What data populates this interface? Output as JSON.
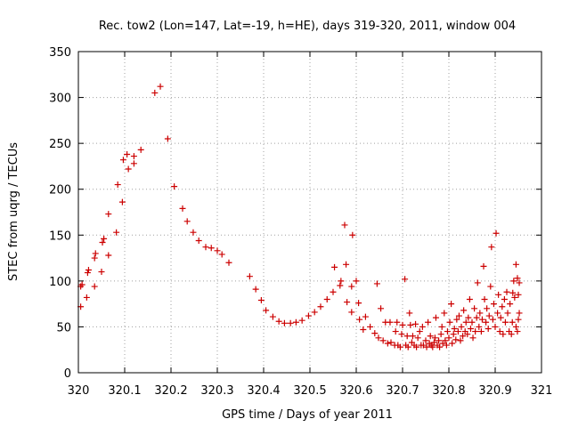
{
  "chart_data": {
    "type": "scatter",
    "title": "Rec. tow2 (Lon=147, Lat=-19, h=HE), days 319-320, 2011, window 004",
    "xlabel": "GPS time / Days of year 2011",
    "ylabel": "STEC from uqrg / TECUs",
    "xlim": [
      320,
      321
    ],
    "ylim": [
      0,
      350
    ],
    "xticks": [
      320,
      320.1,
      320.2,
      320.3,
      320.4,
      320.5,
      320.6,
      320.7,
      320.8,
      320.9,
      321
    ],
    "xtick_labels": [
      "320",
      "320.1",
      "320.2",
      "320.3",
      "320.4",
      "320.5",
      "320.6",
      "320.7",
      "320.8",
      "320.9",
      "321"
    ],
    "yticks": [
      0,
      50,
      100,
      150,
      200,
      250,
      300,
      350
    ],
    "ytick_labels": [
      "0",
      "50",
      "100",
      "150",
      "200",
      "250",
      "300",
      "350"
    ],
    "grid": true,
    "marker": "+",
    "color": "#cc0000",
    "points": [
      [
        320.005,
        72
      ],
      [
        320.005,
        94
      ],
      [
        320.008,
        96
      ],
      [
        320.018,
        82
      ],
      [
        320.02,
        109
      ],
      [
        320.022,
        112
      ],
      [
        320.035,
        94
      ],
      [
        320.035,
        125
      ],
      [
        320.037,
        130
      ],
      [
        320.05,
        110
      ],
      [
        320.052,
        142
      ],
      [
        320.055,
        146
      ],
      [
        320.065,
        128
      ],
      [
        320.065,
        173
      ],
      [
        320.082,
        153
      ],
      [
        320.085,
        205
      ],
      [
        320.095,
        186
      ],
      [
        320.097,
        232
      ],
      [
        320.105,
        238
      ],
      [
        320.108,
        222
      ],
      [
        320.12,
        228
      ],
      [
        320.12,
        236
      ],
      [
        320.135,
        243
      ],
      [
        320.165,
        305
      ],
      [
        320.177,
        312
      ],
      [
        320.193,
        255
      ],
      [
        320.207,
        203
      ],
      [
        320.225,
        179
      ],
      [
        320.235,
        165
      ],
      [
        320.248,
        153
      ],
      [
        320.26,
        144
      ],
      [
        320.275,
        137
      ],
      [
        320.287,
        136
      ],
      [
        320.3,
        133
      ],
      [
        320.31,
        129
      ],
      [
        320.325,
        120
      ],
      [
        320.37,
        105
      ],
      [
        320.383,
        91
      ],
      [
        320.395,
        79
      ],
      [
        320.405,
        68
      ],
      [
        320.42,
        61
      ],
      [
        320.433,
        56
      ],
      [
        320.445,
        54
      ],
      [
        320.458,
        54
      ],
      [
        320.47,
        55
      ],
      [
        320.483,
        57
      ],
      [
        320.497,
        62
      ],
      [
        320.51,
        66
      ],
      [
        320.523,
        72
      ],
      [
        320.537,
        80
      ],
      [
        320.55,
        88
      ],
      [
        320.553,
        115
      ],
      [
        320.565,
        95
      ],
      [
        320.567,
        100
      ],
      [
        320.575,
        161
      ],
      [
        320.578,
        118
      ],
      [
        320.58,
        77
      ],
      [
        320.59,
        66
      ],
      [
        320.592,
        150
      ],
      [
        320.59,
        94
      ],
      [
        320.6,
        100
      ],
      [
        320.605,
        76
      ],
      [
        320.607,
        58
      ],
      [
        320.615,
        47
      ],
      [
        320.62,
        61
      ],
      [
        320.63,
        50
      ],
      [
        320.64,
        43
      ],
      [
        320.645,
        97
      ],
      [
        320.648,
        38
      ],
      [
        320.653,
        70
      ],
      [
        320.658,
        35
      ],
      [
        320.663,
        55
      ],
      [
        320.668,
        32
      ],
      [
        320.673,
        55
      ],
      [
        320.675,
        33
      ],
      [
        320.683,
        30
      ],
      [
        320.685,
        45
      ],
      [
        320.688,
        55
      ],
      [
        320.69,
        30
      ],
      [
        320.695,
        28
      ],
      [
        320.698,
        42
      ],
      [
        320.7,
        52
      ],
      [
        320.705,
        102
      ],
      [
        320.707,
        30
      ],
      [
        320.71,
        40
      ],
      [
        320.712,
        28
      ],
      [
        320.715,
        65
      ],
      [
        320.717,
        52
      ],
      [
        320.72,
        33
      ],
      [
        320.722,
        40
      ],
      [
        320.725,
        30
      ],
      [
        320.728,
        53
      ],
      [
        320.73,
        28
      ],
      [
        320.733,
        38
      ],
      [
        320.737,
        45
      ],
      [
        320.74,
        30
      ],
      [
        320.743,
        50
      ],
      [
        320.745,
        30
      ],
      [
        320.75,
        35
      ],
      [
        320.752,
        28
      ],
      [
        320.755,
        55
      ],
      [
        320.758,
        32
      ],
      [
        320.76,
        40
      ],
      [
        320.762,
        30
      ],
      [
        320.765,
        28
      ],
      [
        320.768,
        33
      ],
      [
        320.77,
        38
      ],
      [
        320.772,
        60
      ],
      [
        320.775,
        30
      ],
      [
        320.778,
        35
      ],
      [
        320.78,
        28
      ],
      [
        320.783,
        42
      ],
      [
        320.785,
        50
      ],
      [
        320.787,
        32
      ],
      [
        320.79,
        65
      ],
      [
        320.792,
        35
      ],
      [
        320.795,
        30
      ],
      [
        320.797,
        45
      ],
      [
        320.8,
        38
      ],
      [
        320.802,
        55
      ],
      [
        320.805,
        75
      ],
      [
        320.807,
        32
      ],
      [
        320.81,
        42
      ],
      [
        320.812,
        48
      ],
      [
        320.815,
        36
      ],
      [
        320.817,
        58
      ],
      [
        320.82,
        45
      ],
      [
        320.822,
        62
      ],
      [
        320.825,
        35
      ],
      [
        320.827,
        50
      ],
      [
        320.83,
        40
      ],
      [
        320.832,
        68
      ],
      [
        320.835,
        45
      ],
      [
        320.837,
        55
      ],
      [
        320.84,
        42
      ],
      [
        320.842,
        60
      ],
      [
        320.845,
        80
      ],
      [
        320.847,
        48
      ],
      [
        320.85,
        55
      ],
      [
        320.852,
        38
      ],
      [
        320.855,
        70
      ],
      [
        320.857,
        45
      ],
      [
        320.86,
        60
      ],
      [
        320.862,
        98
      ],
      [
        320.865,
        50
      ],
      [
        320.867,
        65
      ],
      [
        320.87,
        45
      ],
      [
        320.872,
        58
      ],
      [
        320.875,
        116
      ],
      [
        320.877,
        80
      ],
      [
        320.88,
        55
      ],
      [
        320.882,
        70
      ],
      [
        320.885,
        48
      ],
      [
        320.887,
        62
      ],
      [
        320.89,
        94
      ],
      [
        320.892,
        137
      ],
      [
        320.895,
        58
      ],
      [
        320.897,
        75
      ],
      [
        320.9,
        50
      ],
      [
        320.902,
        152
      ],
      [
        320.905,
        65
      ],
      [
        320.907,
        85
      ],
      [
        320.91,
        45
      ],
      [
        320.912,
        60
      ],
      [
        320.915,
        72
      ],
      [
        320.917,
        42
      ],
      [
        320.92,
        80
      ],
      [
        320.922,
        55
      ],
      [
        320.925,
        88
      ],
      [
        320.927,
        65
      ],
      [
        320.93,
        45
      ],
      [
        320.932,
        75
      ],
      [
        320.935,
        42
      ],
      [
        320.937,
        55
      ],
      [
        320.938,
        87
      ],
      [
        320.94,
        100
      ],
      [
        320.942,
        82
      ],
      [
        320.945,
        50
      ],
      [
        320.945,
        118
      ],
      [
        320.948,
        103
      ],
      [
        320.948,
        45
      ],
      [
        320.95,
        58
      ],
      [
        320.95,
        85
      ],
      [
        320.952,
        65
      ],
      [
        320.952,
        98
      ]
    ]
  }
}
